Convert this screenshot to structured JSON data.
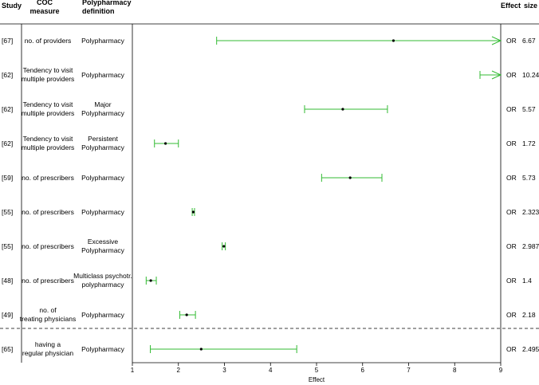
{
  "headers": {
    "study": "Study",
    "coc_line1": "COC",
    "coc_line2": "measure",
    "poly_line1": "Polypharmacy",
    "poly_line2": "definition",
    "effect": "Effect",
    "size": "size"
  },
  "chart_data": {
    "type": "forest",
    "xlabel": "Effect",
    "xlim": [
      1,
      9
    ],
    "xticks": [
      1,
      2,
      3,
      4,
      5,
      6,
      7,
      8,
      9
    ],
    "colors": {
      "ci": "#33bb33",
      "point": "#000000"
    },
    "rows": [
      {
        "study": "[67]",
        "coc": [
          "no. of providers"
        ],
        "definition": [
          "Polypharmacy"
        ],
        "estimate": 6.67,
        "lower": 2.83,
        "upper": 9,
        "arrow_right": true,
        "measure": "OR",
        "size": "6.67"
      },
      {
        "study": "[62]",
        "coc": [
          "Tendency to visit",
          "multiple providers"
        ],
        "definition": [
          "Polypharmacy"
        ],
        "estimate": 10.24,
        "lower": 8.55,
        "upper": 9,
        "arrow_right": true,
        "measure": "OR",
        "size": "10.24"
      },
      {
        "study": "[62]",
        "coc": [
          "Tendency to visit",
          "multiple providers"
        ],
        "definition": [
          "Major",
          "Polypharmacy"
        ],
        "estimate": 5.57,
        "lower": 4.74,
        "upper": 6.54,
        "arrow_right": false,
        "measure": "OR",
        "size": "5.57"
      },
      {
        "study": "[62]",
        "coc": [
          "Tendency to visit",
          "multiple providers"
        ],
        "definition": [
          "Persistent",
          "Polypharmacy"
        ],
        "estimate": 1.72,
        "lower": 1.48,
        "upper": 2.0,
        "arrow_right": false,
        "measure": "OR",
        "size": "1.72"
      },
      {
        "study": "[59]",
        "coc": [
          "no. of prescribers"
        ],
        "definition": [
          "Polypharmacy"
        ],
        "estimate": 5.73,
        "lower": 5.11,
        "upper": 6.42,
        "arrow_right": false,
        "measure": "OR",
        "size": "5.73"
      },
      {
        "study": "[55]",
        "coc": [
          "no. of prescribers"
        ],
        "definition": [
          "Polypharmacy"
        ],
        "estimate": 2.323,
        "lower": 2.3,
        "upper": 2.35,
        "arrow_right": false,
        "measure": "OR",
        "size": "2.323"
      },
      {
        "study": "[55]",
        "coc": [
          "no. of prescribers"
        ],
        "definition": [
          "Excessive",
          "Polypharmacy"
        ],
        "estimate": 2.987,
        "lower": 2.95,
        "upper": 3.02,
        "arrow_right": false,
        "measure": "OR",
        "size": "2.987"
      },
      {
        "study": "[48]",
        "coc": [
          "no. of prescribers"
        ],
        "definition": [
          "Multiclass psychotr.",
          "polypharmacy"
        ],
        "estimate": 1.4,
        "lower": 1.3,
        "upper": 1.52,
        "arrow_right": false,
        "measure": "OR",
        "size": "1.4"
      },
      {
        "study": "[49]",
        "coc": [
          "no. of",
          "treating physicians"
        ],
        "definition": [
          "Polypharmacy"
        ],
        "estimate": 2.18,
        "lower": 2.03,
        "upper": 2.37,
        "arrow_right": false,
        "measure": "OR",
        "size": "2.18"
      },
      {
        "study": "[65]",
        "coc": [
          "having a",
          "regular physician"
        ],
        "definition": [
          "Polypharmacy"
        ],
        "estimate": 2.495,
        "lower": 1.39,
        "upper": 4.57,
        "arrow_right": false,
        "measure": "OR",
        "size": "2.495"
      }
    ],
    "separator_after_row": 9
  }
}
